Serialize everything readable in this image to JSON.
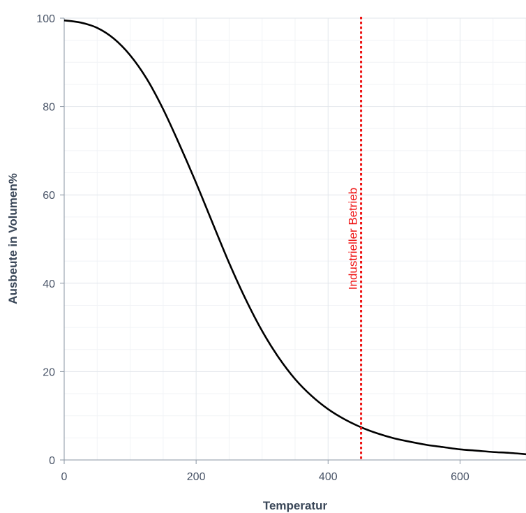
{
  "chart_data": {
    "type": "line",
    "xlabel": "Temperatur",
    "ylabel": "Ausbeute in Volumen%",
    "xlim": [
      0,
      700
    ],
    "ylim": [
      0,
      100
    ],
    "x_ticks": [
      0,
      200,
      400,
      600
    ],
    "y_ticks": [
      0,
      20,
      40,
      60,
      80,
      100
    ],
    "grid": true,
    "series": [
      {
        "color": "#000000",
        "x": [
          0,
          25,
          50,
          75,
          100,
          125,
          150,
          175,
          200,
          225,
          250,
          275,
          300,
          325,
          350,
          375,
          400,
          425,
          450,
          475,
          500,
          525,
          550,
          575,
          600,
          625,
          650,
          675,
          700
        ],
        "y": [
          99.5,
          99.0,
          97.8,
          95.4,
          91.6,
          86.3,
          79.4,
          71.3,
          62.7,
          53.6,
          44.6,
          36.4,
          29.2,
          23.2,
          18.3,
          14.5,
          11.5,
          9.2,
          7.4,
          6.0,
          4.9,
          4.1,
          3.4,
          2.9,
          2.4,
          2.1,
          1.8,
          1.6,
          1.3
        ]
      }
    ],
    "annotations": [
      {
        "type": "vline",
        "x": 450,
        "label": "Industrieller Betrieb",
        "color": "#ee1111",
        "style": "dotted"
      }
    ]
  }
}
